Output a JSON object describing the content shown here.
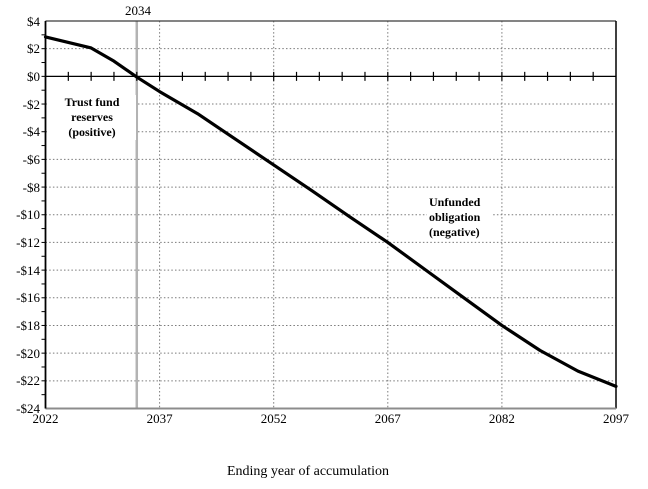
{
  "chart_data": {
    "type": "line",
    "title": "",
    "xlabel": "Ending year of accumulation",
    "ylabel": "",
    "xlim": [
      2022,
      2097
    ],
    "ylim": [
      -24,
      4
    ],
    "grid": true,
    "legend": false,
    "x": [
      2022,
      2025,
      2028,
      2031,
      2034,
      2037,
      2042,
      2047,
      2052,
      2057,
      2062,
      2067,
      2072,
      2077,
      2082,
      2087,
      2092,
      2097
    ],
    "y": [
      2.85,
      2.45,
      2.05,
      1.1,
      -0.05,
      -1.1,
      -2.7,
      -4.55,
      -6.4,
      -8.25,
      -10.15,
      -12.0,
      -14.0,
      -16.0,
      -18.0,
      -19.8,
      -21.3,
      -22.4
    ],
    "x_ticks": [
      2022,
      2037,
      2052,
      2067,
      2082,
      2097
    ],
    "x_tick_labels": [
      "2022",
      "2037",
      "2052",
      "2067",
      "2082",
      "2097"
    ],
    "y_ticks": [
      4,
      2,
      0,
      -2,
      -4,
      -6,
      -8,
      -10,
      -12,
      -14,
      -16,
      -18,
      -20,
      -22,
      -24
    ],
    "y_tick_labels": [
      "$4",
      "$2",
      "$0",
      "-$2",
      "-$4",
      "-$6",
      "-$8",
      "-$10",
      "-$12",
      "-$14",
      "-$16",
      "-$18",
      "-$20",
      "-$22",
      "-$24"
    ],
    "y_minor_tick_step": 1,
    "zero_axis_tick_step_years": 3,
    "reference_line": {
      "x": 2034,
      "label": "2034"
    },
    "annotations": [
      {
        "id": "trust-fund-reserves",
        "lines": [
          "Trust fund",
          "reserves",
          "(positive)"
        ]
      },
      {
        "id": "unfunded-obligation",
        "lines": [
          "Unfunded",
          "obligation",
          "(negative)"
        ]
      }
    ],
    "colors": {
      "curve": "#000000",
      "grid": "#7a7a7a",
      "reference_line": "#b3b3b3",
      "axis": "#000000",
      "bottom_axis": "#8c8c8c",
      "background": "#ffffff"
    }
  }
}
